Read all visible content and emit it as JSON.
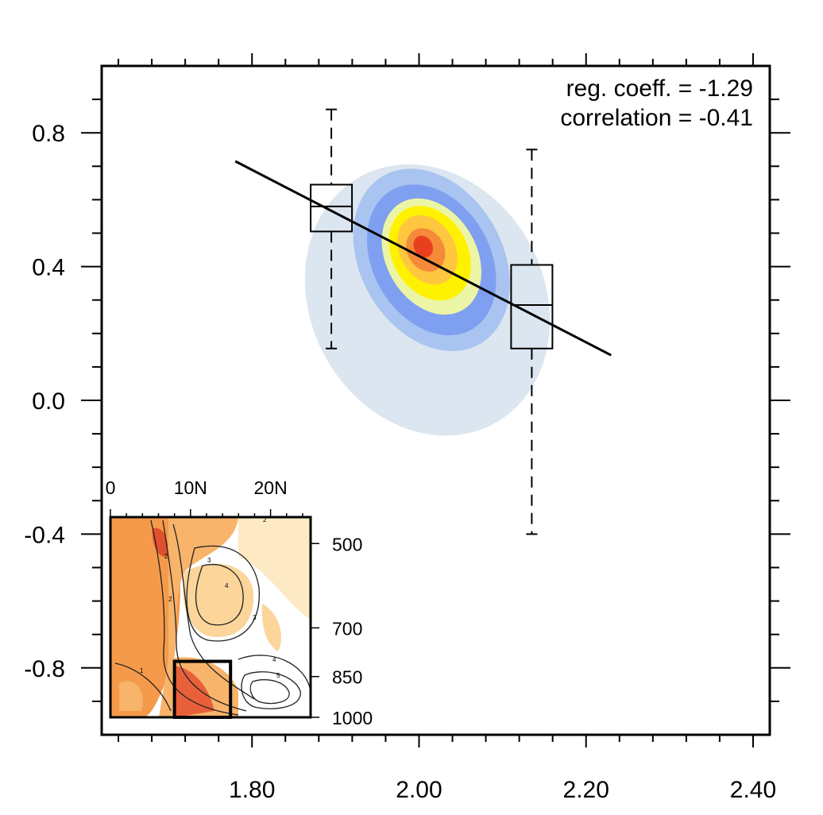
{
  "chart_data": {
    "type": "scatter",
    "title": "",
    "xlabel": "",
    "ylabel": "",
    "xlim": [
      1.62,
      2.42
    ],
    "ylim": [
      -1.0,
      1.0
    ],
    "x_ticks": [
      "1.80",
      "2.00",
      "2.20",
      "2.40"
    ],
    "x_tick_values": [
      1.8,
      2.0,
      2.2,
      2.4
    ],
    "y_ticks": [
      "0.8",
      "0.4",
      "0.0",
      "-0.4",
      "-0.8"
    ],
    "y_tick_values": [
      0.8,
      0.4,
      0.0,
      -0.4,
      -0.8
    ],
    "annotations": [
      "reg. coeff. = -1.29",
      "correlation = -0.41"
    ],
    "regression_line": {
      "x": [
        1.78,
        2.23
      ],
      "y": [
        0.715,
        0.135
      ]
    },
    "density_levels": [
      {
        "color": "#dce6f0",
        "center": [
          2.01,
          0.3
        ],
        "rx": 0.14,
        "ry": 0.42,
        "rot": -28
      },
      {
        "color": "#a9c4f0",
        "center": [
          2.015,
          0.42
        ],
        "rx": 0.085,
        "ry": 0.29,
        "rot": -30
      },
      {
        "color": "#7f9ff0",
        "center": [
          2.015,
          0.42
        ],
        "rx": 0.07,
        "ry": 0.24,
        "rot": -30
      },
      {
        "color": "#ecf5a6",
        "center": [
          2.015,
          0.43
        ],
        "rx": 0.054,
        "ry": 0.185,
        "rot": -30
      },
      {
        "color": "#fff200",
        "center": [
          2.013,
          0.44
        ],
        "rx": 0.045,
        "ry": 0.15,
        "rot": -30
      },
      {
        "color": "#ffc640",
        "center": [
          2.01,
          0.45
        ],
        "rx": 0.033,
        "ry": 0.11,
        "rot": -30
      },
      {
        "color": "#f58a3a",
        "center": [
          2.008,
          0.45
        ],
        "rx": 0.022,
        "ry": 0.068,
        "rot": -30
      },
      {
        "color": "#e8401e",
        "center": [
          2.005,
          0.46
        ],
        "rx": 0.011,
        "ry": 0.034,
        "rot": -30
      }
    ],
    "boxplots": [
      {
        "x": 1.895,
        "whisker_low": 0.155,
        "q1": 0.505,
        "median": 0.58,
        "q3": 0.645,
        "whisker_high": 0.87
      },
      {
        "x": 2.135,
        "whisker_low": -0.4,
        "q1": 0.155,
        "median": 0.285,
        "q3": 0.405,
        "whisker_high": 0.75
      }
    ],
    "inset": {
      "top_labels": [
        "0",
        "10N",
        "20N"
      ],
      "top_values": [
        0,
        10,
        20
      ],
      "xlim": [
        0,
        25
      ],
      "right_labels": [
        "500",
        "700",
        "850",
        "1000"
      ],
      "right_values": [
        500,
        700,
        850,
        1000
      ],
      "contour_labels": [
        "2",
        "3",
        "4",
        "3",
        "2",
        "4",
        "5",
        "2",
        "1"
      ],
      "box_region": {
        "lat": [
          8,
          15
        ],
        "p_top": 800,
        "p_bottom": 1000
      }
    }
  }
}
